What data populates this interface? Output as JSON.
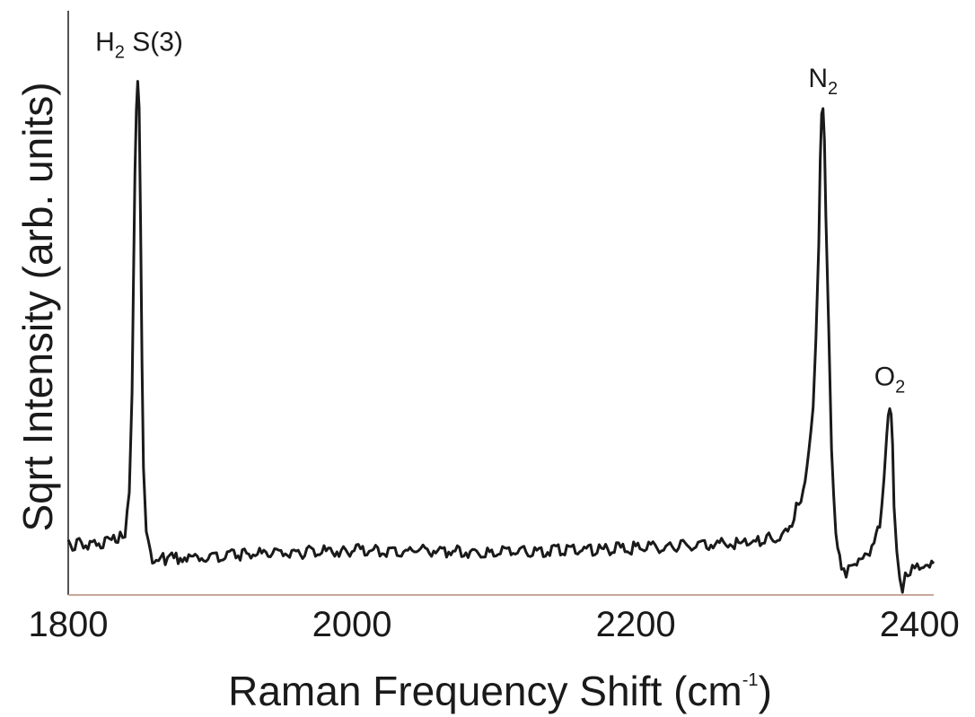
{
  "chart_data": {
    "type": "line",
    "title": "",
    "xlabel": "Raman Frequency Shift (cm",
    "xlabel_sup": "-1",
    "xlabel_close": ")",
    "ylabel": "Sqrt Intensity (arb. units)",
    "xlim": [
      1800,
      2410
    ],
    "ylim": [
      0,
      1.0
    ],
    "x_ticks": [
      "1800",
      "2000",
      "2200",
      "2400"
    ],
    "x_tick_values": [
      1800,
      2000,
      2200,
      2400
    ],
    "y_ticks": [],
    "grid": false,
    "series": [
      {
        "color": "#1a1a1a",
        "x": [
          1800,
          1820,
          1835,
          1840,
          1843,
          1845,
          1846,
          1847,
          1848,
          1849,
          1850,
          1851,
          1852,
          1853,
          1855,
          1858,
          1862,
          1870,
          1900,
          1950,
          2000,
          2050,
          2100,
          2150,
          2200,
          2250,
          2280,
          2300,
          2310,
          2318,
          2322,
          2325,
          2327,
          2329,
          2330,
          2331,
          2332,
          2333,
          2334,
          2336,
          2338,
          2341,
          2345,
          2350,
          2360,
          2368,
          2372,
          2375,
          2377,
          2378,
          2379,
          2380,
          2381,
          2382,
          2384,
          2386,
          2388,
          2390,
          2395,
          2400,
          2410
        ],
        "y": [
          0.095,
          0.1,
          0.105,
          0.12,
          0.19,
          0.38,
          0.6,
          0.8,
          0.93,
          0.99,
          0.94,
          0.72,
          0.45,
          0.25,
          0.12,
          0.075,
          0.065,
          0.07,
          0.075,
          0.08,
          0.085,
          0.085,
          0.08,
          0.085,
          0.09,
          0.095,
          0.1,
          0.11,
          0.14,
          0.2,
          0.27,
          0.37,
          0.5,
          0.68,
          0.82,
          0.91,
          0.92,
          0.86,
          0.72,
          0.5,
          0.28,
          0.12,
          0.04,
          0.045,
          0.065,
          0.1,
          0.14,
          0.22,
          0.3,
          0.34,
          0.35,
          0.34,
          0.28,
          0.18,
          0.09,
          0.04,
          0.01,
          0.04,
          0.05,
          0.055,
          0.06
        ]
      }
    ],
    "annotations": [
      {
        "base": "H",
        "sub": "2",
        "tail": " S(3)",
        "x": 1850,
        "y": 1.02
      },
      {
        "base": "N",
        "sub": "2",
        "tail": "",
        "x": 2332,
        "y": 0.95
      },
      {
        "base": "O",
        "sub": "2",
        "tail": "",
        "x": 2379,
        "y": 0.38
      }
    ]
  }
}
